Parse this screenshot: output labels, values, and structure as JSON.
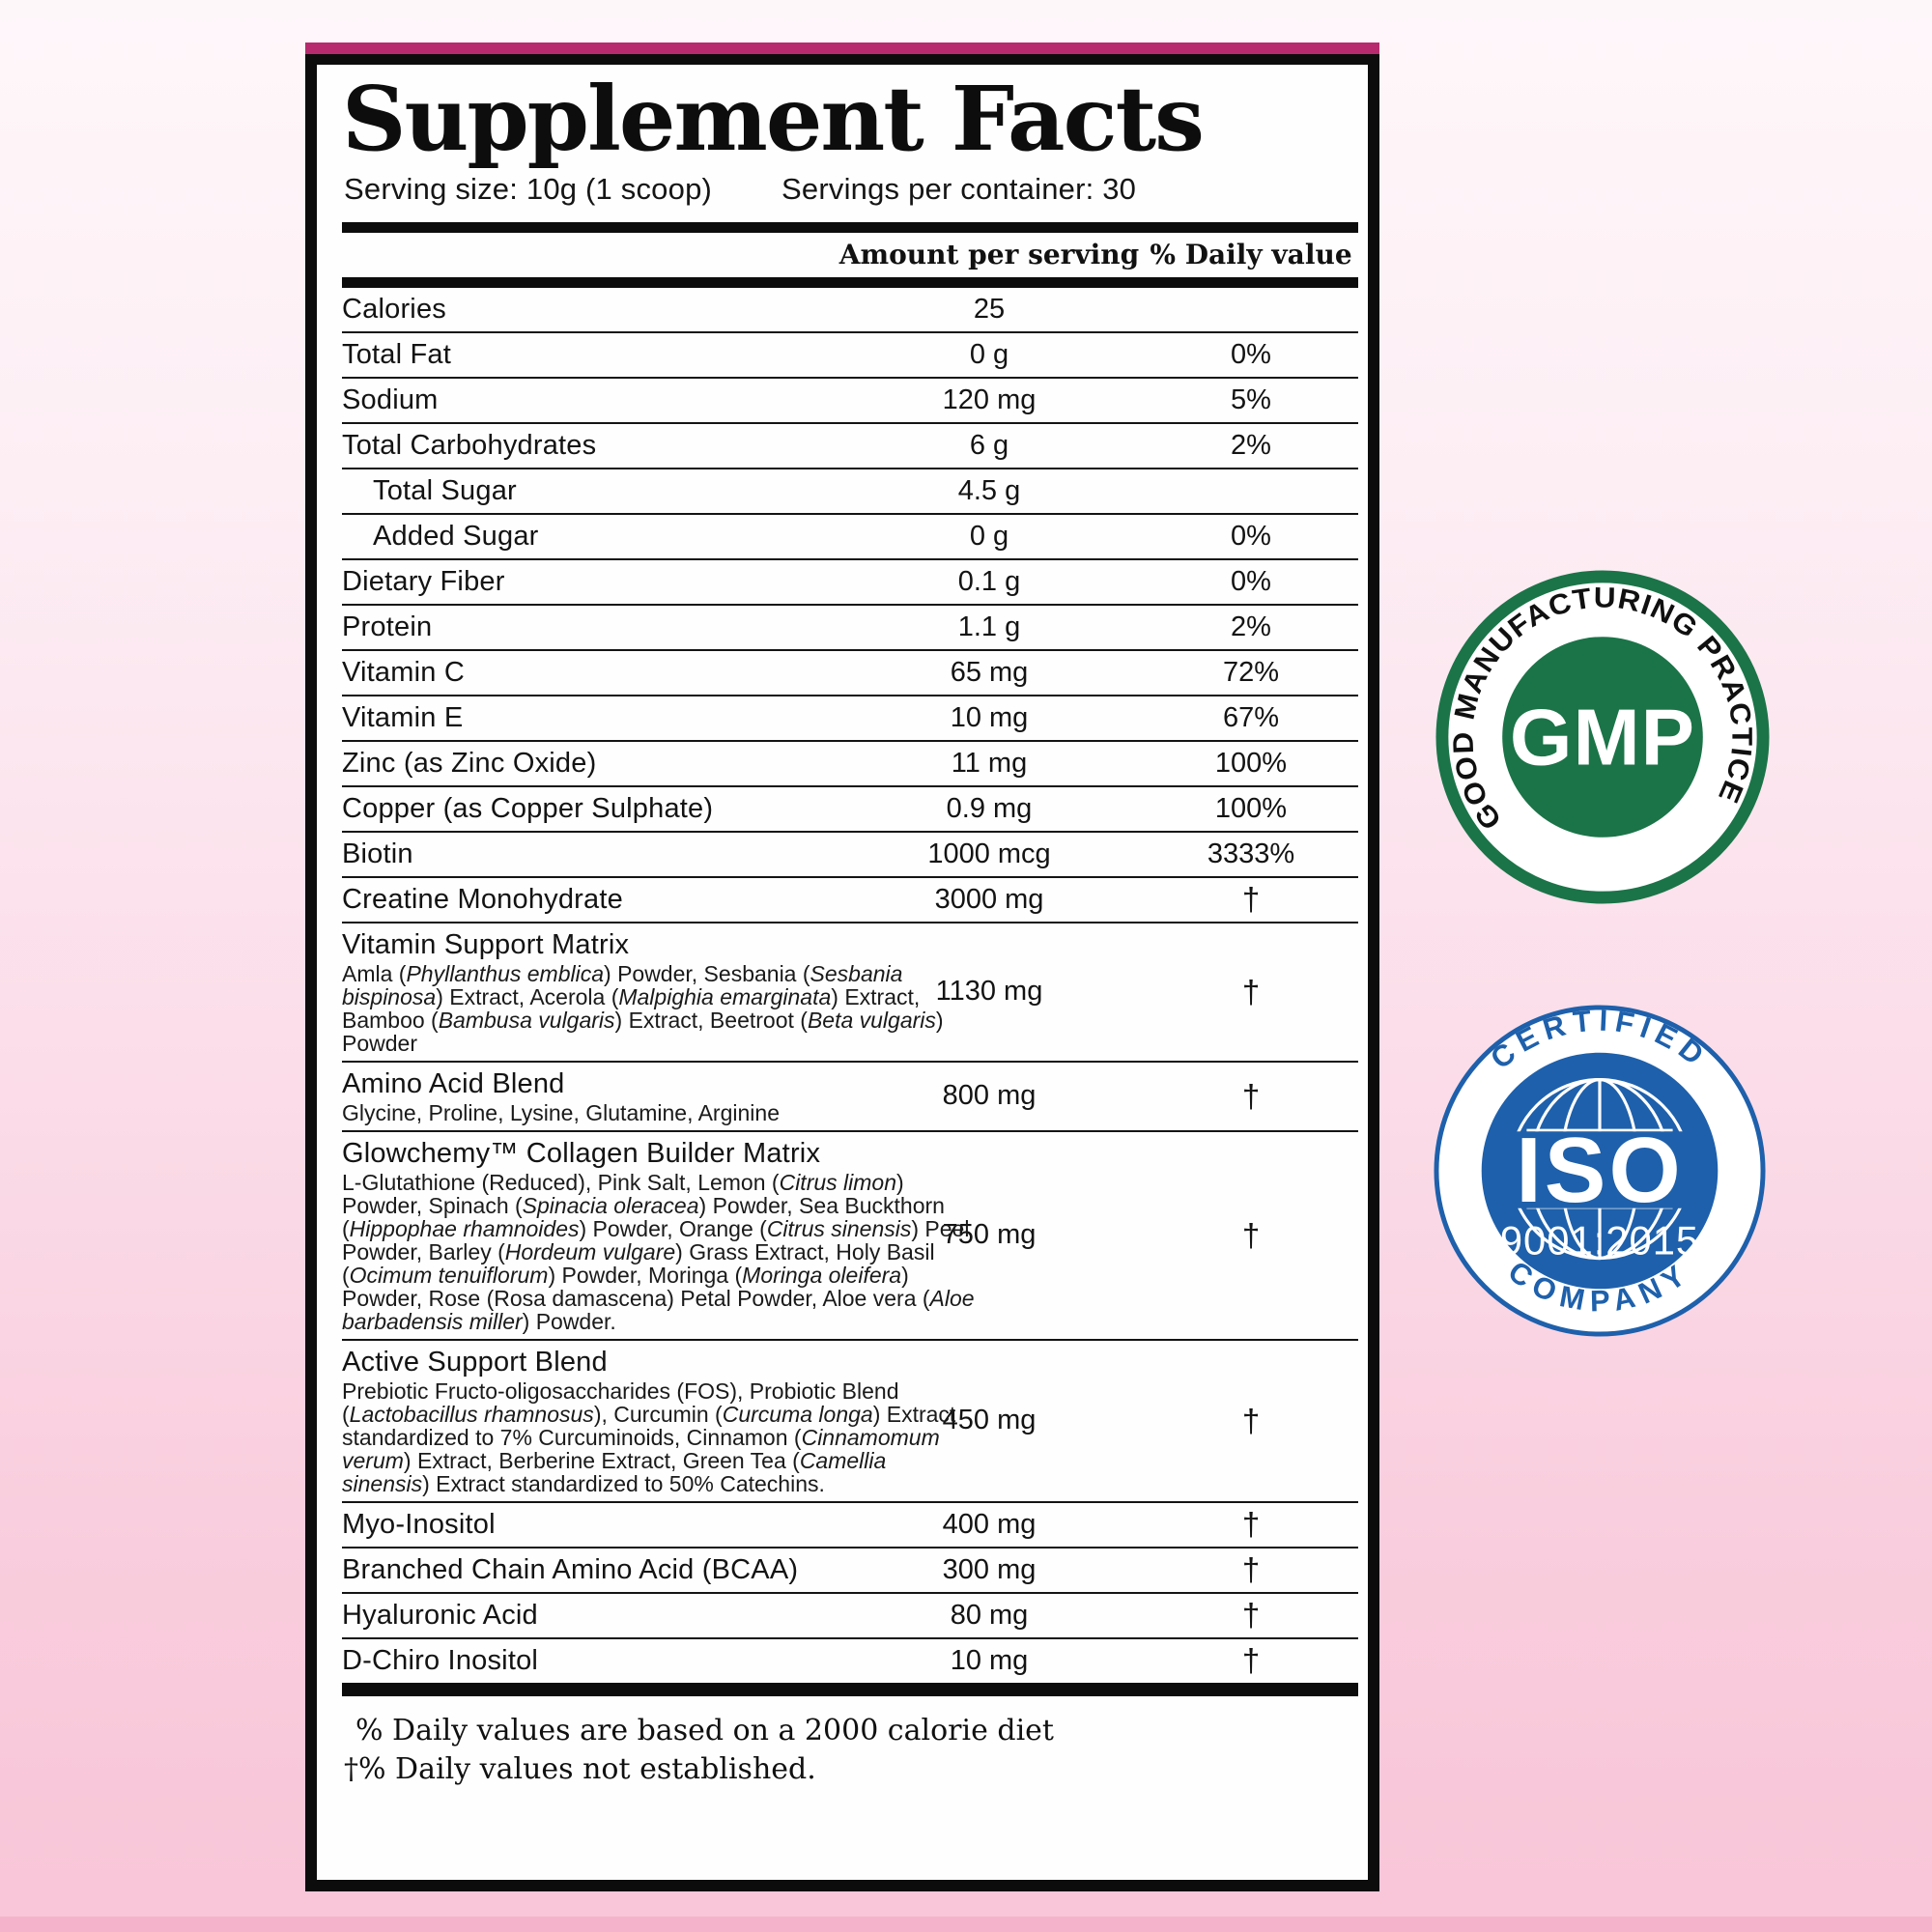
{
  "label": {
    "title": "Supplement Facts",
    "serving_size": "Serving size: 10g (1 scoop)",
    "servings_per_container": "Servings per container: 30",
    "columns": {
      "amount": "Amount per serving",
      "daily_value": "% Daily value"
    },
    "accent_color": "#b72a6e",
    "rows": [
      {
        "name": "Calories",
        "amount": "25",
        "dv": ""
      },
      {
        "name": "Total Fat",
        "amount": "0 g",
        "dv": "0%"
      },
      {
        "name": "Sodium",
        "amount": "120 mg",
        "dv": "5%"
      },
      {
        "name": "Total Carbohydrates",
        "amount": "6 g",
        "dv": "2%"
      },
      {
        "name": "Total Sugar",
        "indent": true,
        "amount": "4.5 g",
        "dv": ""
      },
      {
        "name": "Added Sugar",
        "indent": true,
        "amount": "0 g",
        "dv": "0%"
      },
      {
        "name": "Dietary Fiber",
        "amount": "0.1 g",
        "dv": "0%"
      },
      {
        "name": "Protein",
        "amount": "1.1 g",
        "dv": "2%"
      },
      {
        "name": "Vitamin C",
        "amount": "65 mg",
        "dv": "72%"
      },
      {
        "name": "Vitamin E",
        "amount": "10 mg",
        "dv": "67%"
      },
      {
        "name": "Zinc (as Zinc Oxide)",
        "amount": "11 mg",
        "dv": "100%"
      },
      {
        "name": "Copper (as Copper Sulphate)",
        "amount": "0.9 mg",
        "dv": "100%"
      },
      {
        "name": "Biotin",
        "amount": "1000 mcg",
        "dv": "3333%"
      },
      {
        "name": "Creatine Monohydrate",
        "amount": "3000 mg",
        "dv": "†"
      },
      {
        "name": "Vitamin Support Matrix",
        "amount": "1130 mg",
        "dv": "†",
        "desc": [
          [
            "Amla (",
            0
          ],
          [
            "Phyllanthus emblica",
            1
          ],
          [
            ") Powder, Sesbania (",
            0
          ],
          [
            "Sesbania bispinosa",
            1
          ],
          [
            ") Extract, Acerola (",
            0
          ],
          [
            "Malpighia emarginata",
            1
          ],
          [
            ") Extract, Bamboo (",
            0
          ],
          [
            "Bambusa vulgaris",
            1
          ],
          [
            ") Extract, Beetroot (",
            0
          ],
          [
            "Beta vulgaris",
            1
          ],
          [
            ") Powder",
            0
          ]
        ]
      },
      {
        "name": "Amino Acid Blend",
        "amount": "800 mg",
        "dv": "†",
        "desc": [
          [
            "Glycine, Proline, Lysine, Glutamine, Arginine",
            0
          ]
        ]
      },
      {
        "name": "Glowchemy™ Collagen Builder Matrix",
        "amount": "750 mg",
        "dv": "†",
        "desc": [
          [
            "L-Glutathione (Reduced), Pink Salt, Lemon (",
            0
          ],
          [
            "Citrus limon",
            1
          ],
          [
            ") Powder, Spinach (",
            0
          ],
          [
            "Spinacia oleracea",
            1
          ],
          [
            ") Powder, Sea Buckthorn (",
            0
          ],
          [
            "Hippophae rhamnoides",
            1
          ],
          [
            ") Powder, Orange (",
            0
          ],
          [
            "Citrus sinensis",
            1
          ],
          [
            ") Peel Powder, Barley (",
            0
          ],
          [
            "Hordeum vulgare",
            1
          ],
          [
            ") Grass Extract, Holy Basil (",
            0
          ],
          [
            "Ocimum tenuiflorum",
            1
          ],
          [
            ") Powder, Moringa (",
            0
          ],
          [
            "Moringa oleifera",
            1
          ],
          [
            ") Powder, Rose (Rosa damascena) Petal Powder, Aloe vera (",
            0
          ],
          [
            "Aloe barbadensis miller",
            1
          ],
          [
            ") Powder.",
            0
          ]
        ]
      },
      {
        "name": "Active Support Blend",
        "amount": "450 mg",
        "dv": "†",
        "desc": [
          [
            "Prebiotic Fructo-oligosaccharides (FOS), Probiotic Blend (",
            0
          ],
          [
            "Lactobacillus rhamnosus",
            1
          ],
          [
            "), Curcumin (",
            0
          ],
          [
            "Curcuma longa",
            1
          ],
          [
            ") Extract standardized to 7% Curcuminoids, Cinnamon (",
            0
          ],
          [
            "Cinnamomum verum",
            1
          ],
          [
            ") Extract, Berberine Extract, Green Tea (",
            0
          ],
          [
            "Camellia sinensis",
            1
          ],
          [
            ") Extract standardized to 50% Catechins.",
            0
          ]
        ]
      },
      {
        "name": "Myo-Inositol",
        "amount": "400 mg",
        "dv": "†"
      },
      {
        "name": "Branched Chain Amino Acid (BCAA)",
        "amount": "300 mg",
        "dv": "†"
      },
      {
        "name": "Hyaluronic Acid",
        "amount": "80 mg",
        "dv": "†"
      },
      {
        "name": "D-Chiro Inositol",
        "amount": "10 mg",
        "dv": "†"
      }
    ],
    "footnote1": "% Daily values are based on a 2000 calorie diet",
    "footnote2": "†% Daily values not established."
  },
  "badges": {
    "gmp": {
      "ring_text": "GOOD MANUFACTURING PRACTICE",
      "center_text": "GMP",
      "color": "#1b7448"
    },
    "iso": {
      "arc_top": "CERTIFIED",
      "arc_bottom": "COMPANY",
      "center_text": "ISO",
      "standard": "9001:2015",
      "color": "#1e60ab"
    }
  },
  "background": {
    "top": "#fef7fa",
    "bottom": "#f8c6d8",
    "bottom_strip": "#f5b3cb"
  }
}
